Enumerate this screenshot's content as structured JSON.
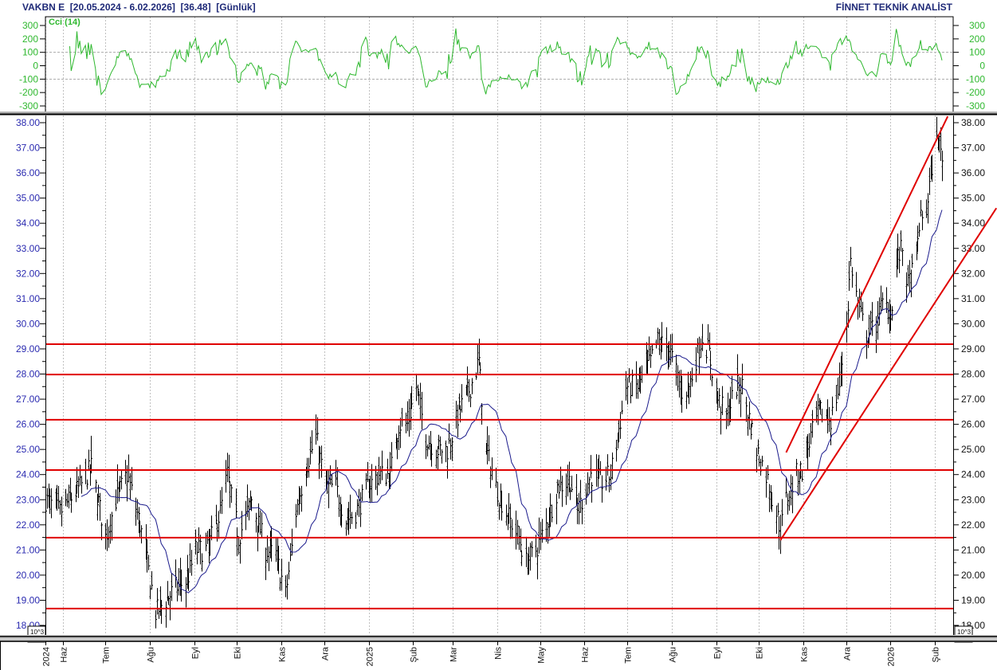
{
  "header": {
    "title": "VAKBN E  [20.05.2024 - 6.02.2026]  [36.48]  [Günlük]",
    "brand": "FİNNET TEKNİK ANALİST"
  },
  "colors": {
    "title": "#1f2a78",
    "cci_line": "#2eb82e",
    "price_bars": "#000000",
    "moving_average": "#1a1a8c",
    "support_resistance": "#e00000",
    "left_axis_labels": "#2a2ab0",
    "grid": "#c0c0c0"
  },
  "chart_data": [
    {
      "type": "line",
      "indicator_label": "Cci (14)",
      "ylim": [
        -300,
        300
      ],
      "yticks": [
        300,
        200,
        100,
        0,
        -100,
        -200,
        -300
      ],
      "yticks_labels": [
        "300",
        "200",
        "100",
        "0",
        "-100",
        "-200",
        "-300"
      ],
      "reference_lines": [
        100,
        -100
      ],
      "grid": true
    },
    {
      "type": "ohlc",
      "ylim": [
        18,
        38
      ],
      "yticks_labels": [
        "38.00",
        "37.00",
        "36.00",
        "35.00",
        "34.00",
        "33.00",
        "32.00",
        "31.00",
        "30.00",
        "29.00",
        "28.00",
        "27.00",
        "26.00",
        "25.00",
        "24.00",
        "23.00",
        "22.00",
        "21.00",
        "20.00",
        "19.00",
        "18.00"
      ],
      "scale_label": "10^3",
      "grid": true,
      "xlim": [
        "2024-05-20",
        "2026-02-06"
      ],
      "xticks": [
        {
          "date": "2024-05-20",
          "label": "2024"
        },
        {
          "date": "2024-06-01",
          "label": "Haz"
        },
        {
          "date": "2024-07-01",
          "label": "Tem"
        },
        {
          "date": "2024-08-01",
          "label": "Ağu"
        },
        {
          "date": "2024-09-01",
          "label": "Eyl"
        },
        {
          "date": "2024-10-01",
          "label": "Eki"
        },
        {
          "date": "2024-11-01",
          "label": "Kas"
        },
        {
          "date": "2024-12-01",
          "label": "Ara"
        },
        {
          "date": "2025-01-01",
          "label": "2025"
        },
        {
          "date": "2025-02-01",
          "label": "Şub"
        },
        {
          "date": "2025-03-01",
          "label": "Mar"
        },
        {
          "date": "2025-04-01",
          "label": "Nis"
        },
        {
          "date": "2025-05-01",
          "label": "May"
        },
        {
          "date": "2025-06-01",
          "label": "Haz"
        },
        {
          "date": "2025-07-01",
          "label": "Tem"
        },
        {
          "date": "2025-08-01",
          "label": "Ağu"
        },
        {
          "date": "2025-09-01",
          "label": "Eyl"
        },
        {
          "date": "2025-10-01",
          "label": "Eki"
        },
        {
          "date": "2025-11-01",
          "label": "Kas"
        },
        {
          "date": "2025-12-01",
          "label": "Ara"
        },
        {
          "date": "2026-01-01",
          "label": "2026"
        },
        {
          "date": "2026-02-01",
          "label": "Şub"
        }
      ],
      "close_path": [
        [
          "2024-05-20",
          23.0
        ],
        [
          "2024-05-30",
          22.5
        ],
        [
          "2024-06-13",
          23.5
        ],
        [
          "2024-06-21",
          24.3
        ],
        [
          "2024-07-01",
          21.5
        ],
        [
          "2024-07-08",
          23.0
        ],
        [
          "2024-07-16",
          24.0
        ],
        [
          "2024-07-25",
          22.0
        ],
        [
          "2024-07-30",
          20.5
        ],
        [
          "2024-08-05",
          18.5
        ],
        [
          "2024-08-12",
          19.0
        ],
        [
          "2024-08-19",
          19.5
        ],
        [
          "2024-08-27",
          19.8
        ],
        [
          "2024-09-02",
          21.0
        ],
        [
          "2024-09-10",
          21.0
        ],
        [
          "2024-09-19",
          22.5
        ],
        [
          "2024-09-24",
          24.0
        ],
        [
          "2024-10-02",
          21.5
        ],
        [
          "2024-10-11",
          23.0
        ],
        [
          "2024-10-21",
          21.0
        ],
        [
          "2024-10-28",
          20.8
        ],
        [
          "2024-11-04",
          19.2
        ],
        [
          "2024-11-11",
          22.5
        ],
        [
          "2024-11-19",
          24.5
        ],
        [
          "2024-11-25",
          25.5
        ],
        [
          "2024-12-02",
          23.5
        ],
        [
          "2024-12-09",
          23.5
        ],
        [
          "2024-12-16",
          22.2
        ],
        [
          "2024-12-23",
          22.5
        ],
        [
          "2024-12-31",
          23.5
        ],
        [
          "2025-01-08",
          24.0
        ],
        [
          "2025-01-16",
          24.0
        ],
        [
          "2025-01-22",
          26.0
        ],
        [
          "2025-01-28",
          26.0
        ],
        [
          "2025-02-03",
          27.5
        ],
        [
          "2025-02-10",
          25.5
        ],
        [
          "2025-02-17",
          25.0
        ],
        [
          "2025-02-25",
          25.0
        ],
        [
          "2025-03-05",
          26.5
        ],
        [
          "2025-03-13",
          27.5
        ],
        [
          "2025-03-19",
          28.5
        ],
        [
          "2025-03-24",
          25.0
        ],
        [
          "2025-03-31",
          23.5
        ],
        [
          "2025-04-07",
          22.5
        ],
        [
          "2025-04-16",
          21.5
        ],
        [
          "2025-04-21",
          20.5
        ],
        [
          "2025-04-28",
          21.0
        ],
        [
          "2025-05-05",
          22.0
        ],
        [
          "2025-05-13",
          23.5
        ],
        [
          "2025-05-22",
          23.8
        ],
        [
          "2025-05-27",
          22.5
        ],
        [
          "2025-06-05",
          24.0
        ],
        [
          "2025-06-13",
          23.7
        ],
        [
          "2025-06-19",
          24.0
        ],
        [
          "2025-06-24",
          25.5
        ],
        [
          "2025-06-30",
          27.5
        ],
        [
          "2025-07-08",
          27.5
        ],
        [
          "2025-07-17",
          28.5
        ],
        [
          "2025-07-22",
          29.3
        ],
        [
          "2025-07-30",
          29.0
        ],
        [
          "2025-08-08",
          27.3
        ],
        [
          "2025-08-13",
          27.5
        ],
        [
          "2025-08-22",
          29.5
        ],
        [
          "2025-08-27",
          28.8
        ],
        [
          "2025-09-02",
          27.0
        ],
        [
          "2025-09-08",
          26.3
        ],
        [
          "2025-09-15",
          27.5
        ],
        [
          "2025-09-19",
          27.5
        ],
        [
          "2025-09-29",
          25.0
        ],
        [
          "2025-10-06",
          24.0
        ],
        [
          "2025-10-13",
          22.5
        ],
        [
          "2025-10-16",
          21.8
        ],
        [
          "2025-10-20",
          23.0
        ],
        [
          "2025-10-27",
          24.0
        ],
        [
          "2025-10-31",
          24.2
        ],
        [
          "2025-11-06",
          25.5
        ],
        [
          "2025-11-12",
          26.5
        ],
        [
          "2025-11-20",
          26.2
        ],
        [
          "2025-11-26",
          27.5
        ],
        [
          "2025-12-01",
          30.0
        ],
        [
          "2025-12-04",
          32.5
        ],
        [
          "2025-12-10",
          30.5
        ],
        [
          "2025-12-15",
          29.5
        ],
        [
          "2025-12-22",
          30.0
        ],
        [
          "2025-12-26",
          30.8
        ],
        [
          "2026-01-02",
          30.5
        ],
        [
          "2026-01-05",
          32.5
        ],
        [
          "2026-01-09",
          33.0
        ],
        [
          "2026-01-13",
          31.5
        ],
        [
          "2026-01-19",
          32.5
        ],
        [
          "2026-01-21",
          34.0
        ],
        [
          "2026-01-26",
          34.5
        ],
        [
          "2026-01-29",
          36.0
        ],
        [
          "2026-02-03",
          37.5
        ],
        [
          "2026-02-06",
          36.48
        ]
      ],
      "horizontal_levels": [
        29.19,
        27.98,
        26.18,
        24.18,
        21.49,
        18.67
      ],
      "trendlines": [
        {
          "from": [
            "2025-10-20",
            24.88
          ],
          "to": [
            "2026-02-10",
            38.25
          ]
        },
        {
          "from": [
            "2025-10-16",
            21.39
          ],
          "to": [
            "2026-03-16",
            34.6
          ]
        }
      ],
      "moving_average": "simple, 20-day"
    }
  ]
}
